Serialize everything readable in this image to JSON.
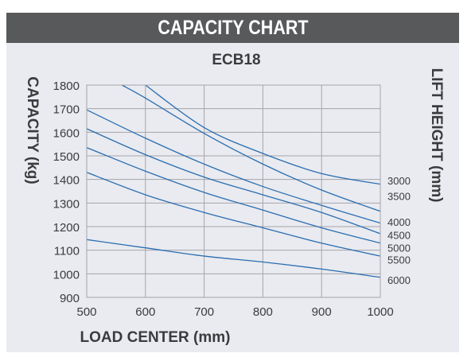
{
  "header": {
    "title": "CAPACITY CHART"
  },
  "chart_data": {
    "type": "line",
    "title": "ECB18",
    "xlabel": "LOAD CENTER (mm)",
    "ylabel": "CAPACITY (kg)",
    "y2label": "LIFT HEIGHT (mm)",
    "xlim": [
      500,
      1000
    ],
    "ylim": [
      900,
      1800
    ],
    "x_ticks": [
      "500",
      "600",
      "700",
      "800",
      "900",
      "1000"
    ],
    "y_ticks": [
      "900",
      "1000",
      "1100",
      "1200",
      "1300",
      "1400",
      "1500",
      "1600",
      "1700",
      "1800"
    ],
    "grid": true,
    "series": [
      {
        "name": "3000",
        "x": [
          600,
          700,
          800,
          900,
          1000
        ],
        "values": [
          1800,
          1620,
          1510,
          1425,
          1380
        ]
      },
      {
        "name": "3500",
        "x": [
          560,
          600,
          700,
          800,
          900,
          1000
        ],
        "values": [
          1800,
          1745,
          1595,
          1465,
          1355,
          1265
        ]
      },
      {
        "name": "4000",
        "x": [
          500,
          600,
          700,
          800,
          900,
          1000
        ],
        "values": [
          1695,
          1575,
          1465,
          1370,
          1290,
          1215
        ]
      },
      {
        "name": "4500",
        "x": [
          500,
          600,
          700,
          800,
          900,
          1000
        ],
        "values": [
          1615,
          1505,
          1410,
          1335,
          1260,
          1170
        ]
      },
      {
        "name": "5000",
        "x": [
          500,
          600,
          700,
          800,
          900,
          1000
        ],
        "values": [
          1535,
          1435,
          1345,
          1270,
          1195,
          1130
        ]
      },
      {
        "name": "5500",
        "x": [
          500,
          600,
          700,
          800,
          900,
          1000
        ],
        "values": [
          1430,
          1335,
          1260,
          1195,
          1130,
          1075
        ]
      },
      {
        "name": "6000",
        "x": [
          500,
          600,
          700,
          800,
          900,
          1000
        ],
        "values": [
          1145,
          1110,
          1075,
          1050,
          1020,
          985
        ]
      }
    ],
    "series_labels": [
      {
        "text": "3000",
        "y": 1395
      },
      {
        "text": "3500",
        "y": 1330
      },
      {
        "text": "4000",
        "y": 1220
      },
      {
        "text": "4500",
        "y": 1165
      },
      {
        "text": "5000",
        "y": 1110
      },
      {
        "text": "5500",
        "y": 1060
      },
      {
        "text": "6000",
        "y": 975
      }
    ],
    "colors": {
      "line": "#2a6db0",
      "grid": "#a4a6ab",
      "panel": "#e9ebf0",
      "header": "#58595b",
      "text": "#3a3b3d"
    }
  }
}
